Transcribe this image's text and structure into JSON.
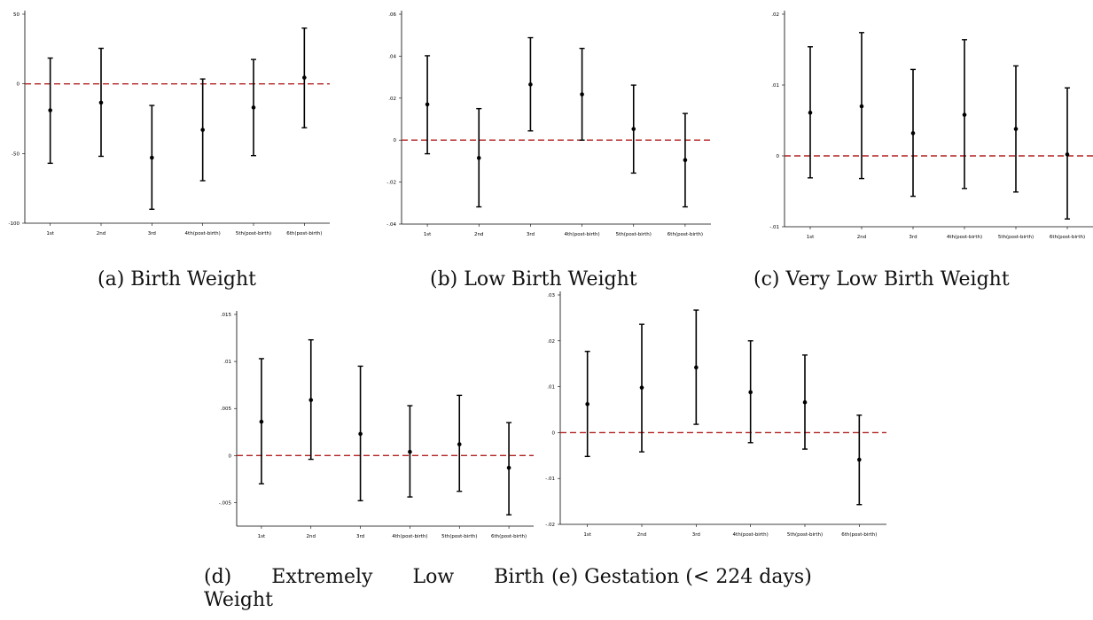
{
  "figure": {
    "captions": {
      "a": "(a) Birth Weight",
      "b": "(b) Low Birth Weight",
      "c": "(c) Very Low Birth Weight",
      "d_line1": "(d) Extremely Low Birth",
      "d_line2": "Weight",
      "e": "(e) Gestation (< 224 days)"
    }
  },
  "style": {
    "point_color": "#000000",
    "errorbar_color": "#000000",
    "reference_line_color": "#b22222",
    "axis_color": "#000000"
  },
  "chart_data": [
    {
      "id": "a",
      "type": "scatter",
      "title": "",
      "xlabel": "",
      "ylabel": "",
      "categories": [
        "1st",
        "2nd",
        "3rd",
        "4th(post-birth)",
        "5th(post-birth)",
        "6th(post-birth)"
      ],
      "values": [
        -19,
        -13.5,
        -53,
        -33,
        -17,
        4.5
      ],
      "ci_low": [
        -57,
        -52,
        -90,
        -69.5,
        -51.5,
        -31.5
      ],
      "ci_high": [
        18.5,
        25.5,
        -15.5,
        3.5,
        17.5,
        40
      ],
      "ylim": [
        -100,
        50
      ],
      "yticks": [
        -100,
        -50,
        0,
        50
      ],
      "ytick_labels": [
        "-100",
        "-50",
        "0",
        "50"
      ],
      "reference_line": 0,
      "grid": false
    },
    {
      "id": "b",
      "type": "scatter",
      "title": "",
      "xlabel": "",
      "ylabel": "",
      "categories": [
        "1st",
        "2nd",
        "3rd",
        "4th(post-birth)",
        "5th(post-birth)",
        "6th(post-birth)"
      ],
      "values": [
        0.017,
        -0.0085,
        0.0265,
        0.0218,
        0.0053,
        -0.0095
      ],
      "ci_low": [
        -0.0065,
        -0.0318,
        0.0044,
        0.0,
        -0.0157,
        -0.0318
      ],
      "ci_high": [
        0.0402,
        0.015,
        0.0488,
        0.0437,
        0.0262,
        0.0127
      ],
      "ylim": [
        -0.04,
        0.06
      ],
      "yticks": [
        -0.04,
        -0.02,
        0,
        0.02,
        0.04,
        0.06
      ],
      "ytick_labels": [
        "-.04",
        "-.02",
        "0",
        ".02",
        ".04",
        ".06"
      ],
      "reference_line": 0,
      "grid": false
    },
    {
      "id": "c",
      "type": "scatter",
      "title": "",
      "xlabel": "",
      "ylabel": "",
      "categories": [
        "1st",
        "2nd",
        "3rd",
        "4th(post-birth)",
        "5th(post-birth)",
        "6th(post-birth)"
      ],
      "values": [
        0.0061,
        0.007,
        0.0032,
        0.0058,
        0.0038,
        0.0002
      ],
      "ci_low": [
        -0.0031,
        -0.0032,
        -0.0057,
        -0.0046,
        -0.0051,
        -0.0089
      ],
      "ci_high": [
        0.0154,
        0.0174,
        0.0122,
        0.0164,
        0.0127,
        0.0096
      ],
      "ylim": [
        -0.01,
        0.02
      ],
      "yticks": [
        -0.01,
        0,
        0.01,
        0.02
      ],
      "ytick_labels": [
        "-.01",
        "0",
        ".01",
        ".02"
      ],
      "reference_line": 0,
      "grid": false
    },
    {
      "id": "d",
      "type": "scatter",
      "title": "",
      "xlabel": "",
      "ylabel": "",
      "categories": [
        "1st",
        "2nd",
        "3rd",
        "4th(post-birth)",
        "5th(post-birth)",
        "6th(post-birth)"
      ],
      "values": [
        0.0036,
        0.0059,
        0.0023,
        0.0004,
        0.0012,
        -0.0013
      ],
      "ci_low": [
        -0.003,
        -0.0004,
        -0.0048,
        -0.0044,
        -0.0038,
        -0.0063
      ],
      "ci_high": [
        0.0103,
        0.0123,
        0.0095,
        0.0053,
        0.0064,
        0.0035
      ],
      "ylim": [
        -0.0075,
        0.015
      ],
      "yticks": [
        -0.005,
        0,
        0.005,
        0.01,
        0.015
      ],
      "ytick_labels": [
        "-.005",
        "0",
        ".005",
        ".01",
        ".015"
      ],
      "reference_line": 0,
      "grid": false
    },
    {
      "id": "e",
      "type": "scatter",
      "title": "",
      "xlabel": "",
      "ylabel": "",
      "categories": [
        "1st",
        "2nd",
        "3rd",
        "4th(post-birth)",
        "5th(post-birth)",
        "6th(post-birth)"
      ],
      "values": [
        0.0062,
        0.0098,
        0.0142,
        0.0088,
        0.0066,
        -0.0059
      ],
      "ci_low": [
        -0.0052,
        -0.0042,
        0.0018,
        -0.0022,
        -0.0036,
        -0.0157
      ],
      "ci_high": [
        0.0177,
        0.0236,
        0.0267,
        0.02,
        0.0169,
        0.0038
      ],
      "ylim": [
        -0.02,
        0.03
      ],
      "yticks": [
        -0.02,
        -0.01,
        0,
        0.01,
        0.02,
        0.03
      ],
      "ytick_labels": [
        "-.02",
        "-.01",
        "0",
        ".01",
        ".02",
        ".03"
      ],
      "reference_line": 0,
      "grid": false
    }
  ]
}
